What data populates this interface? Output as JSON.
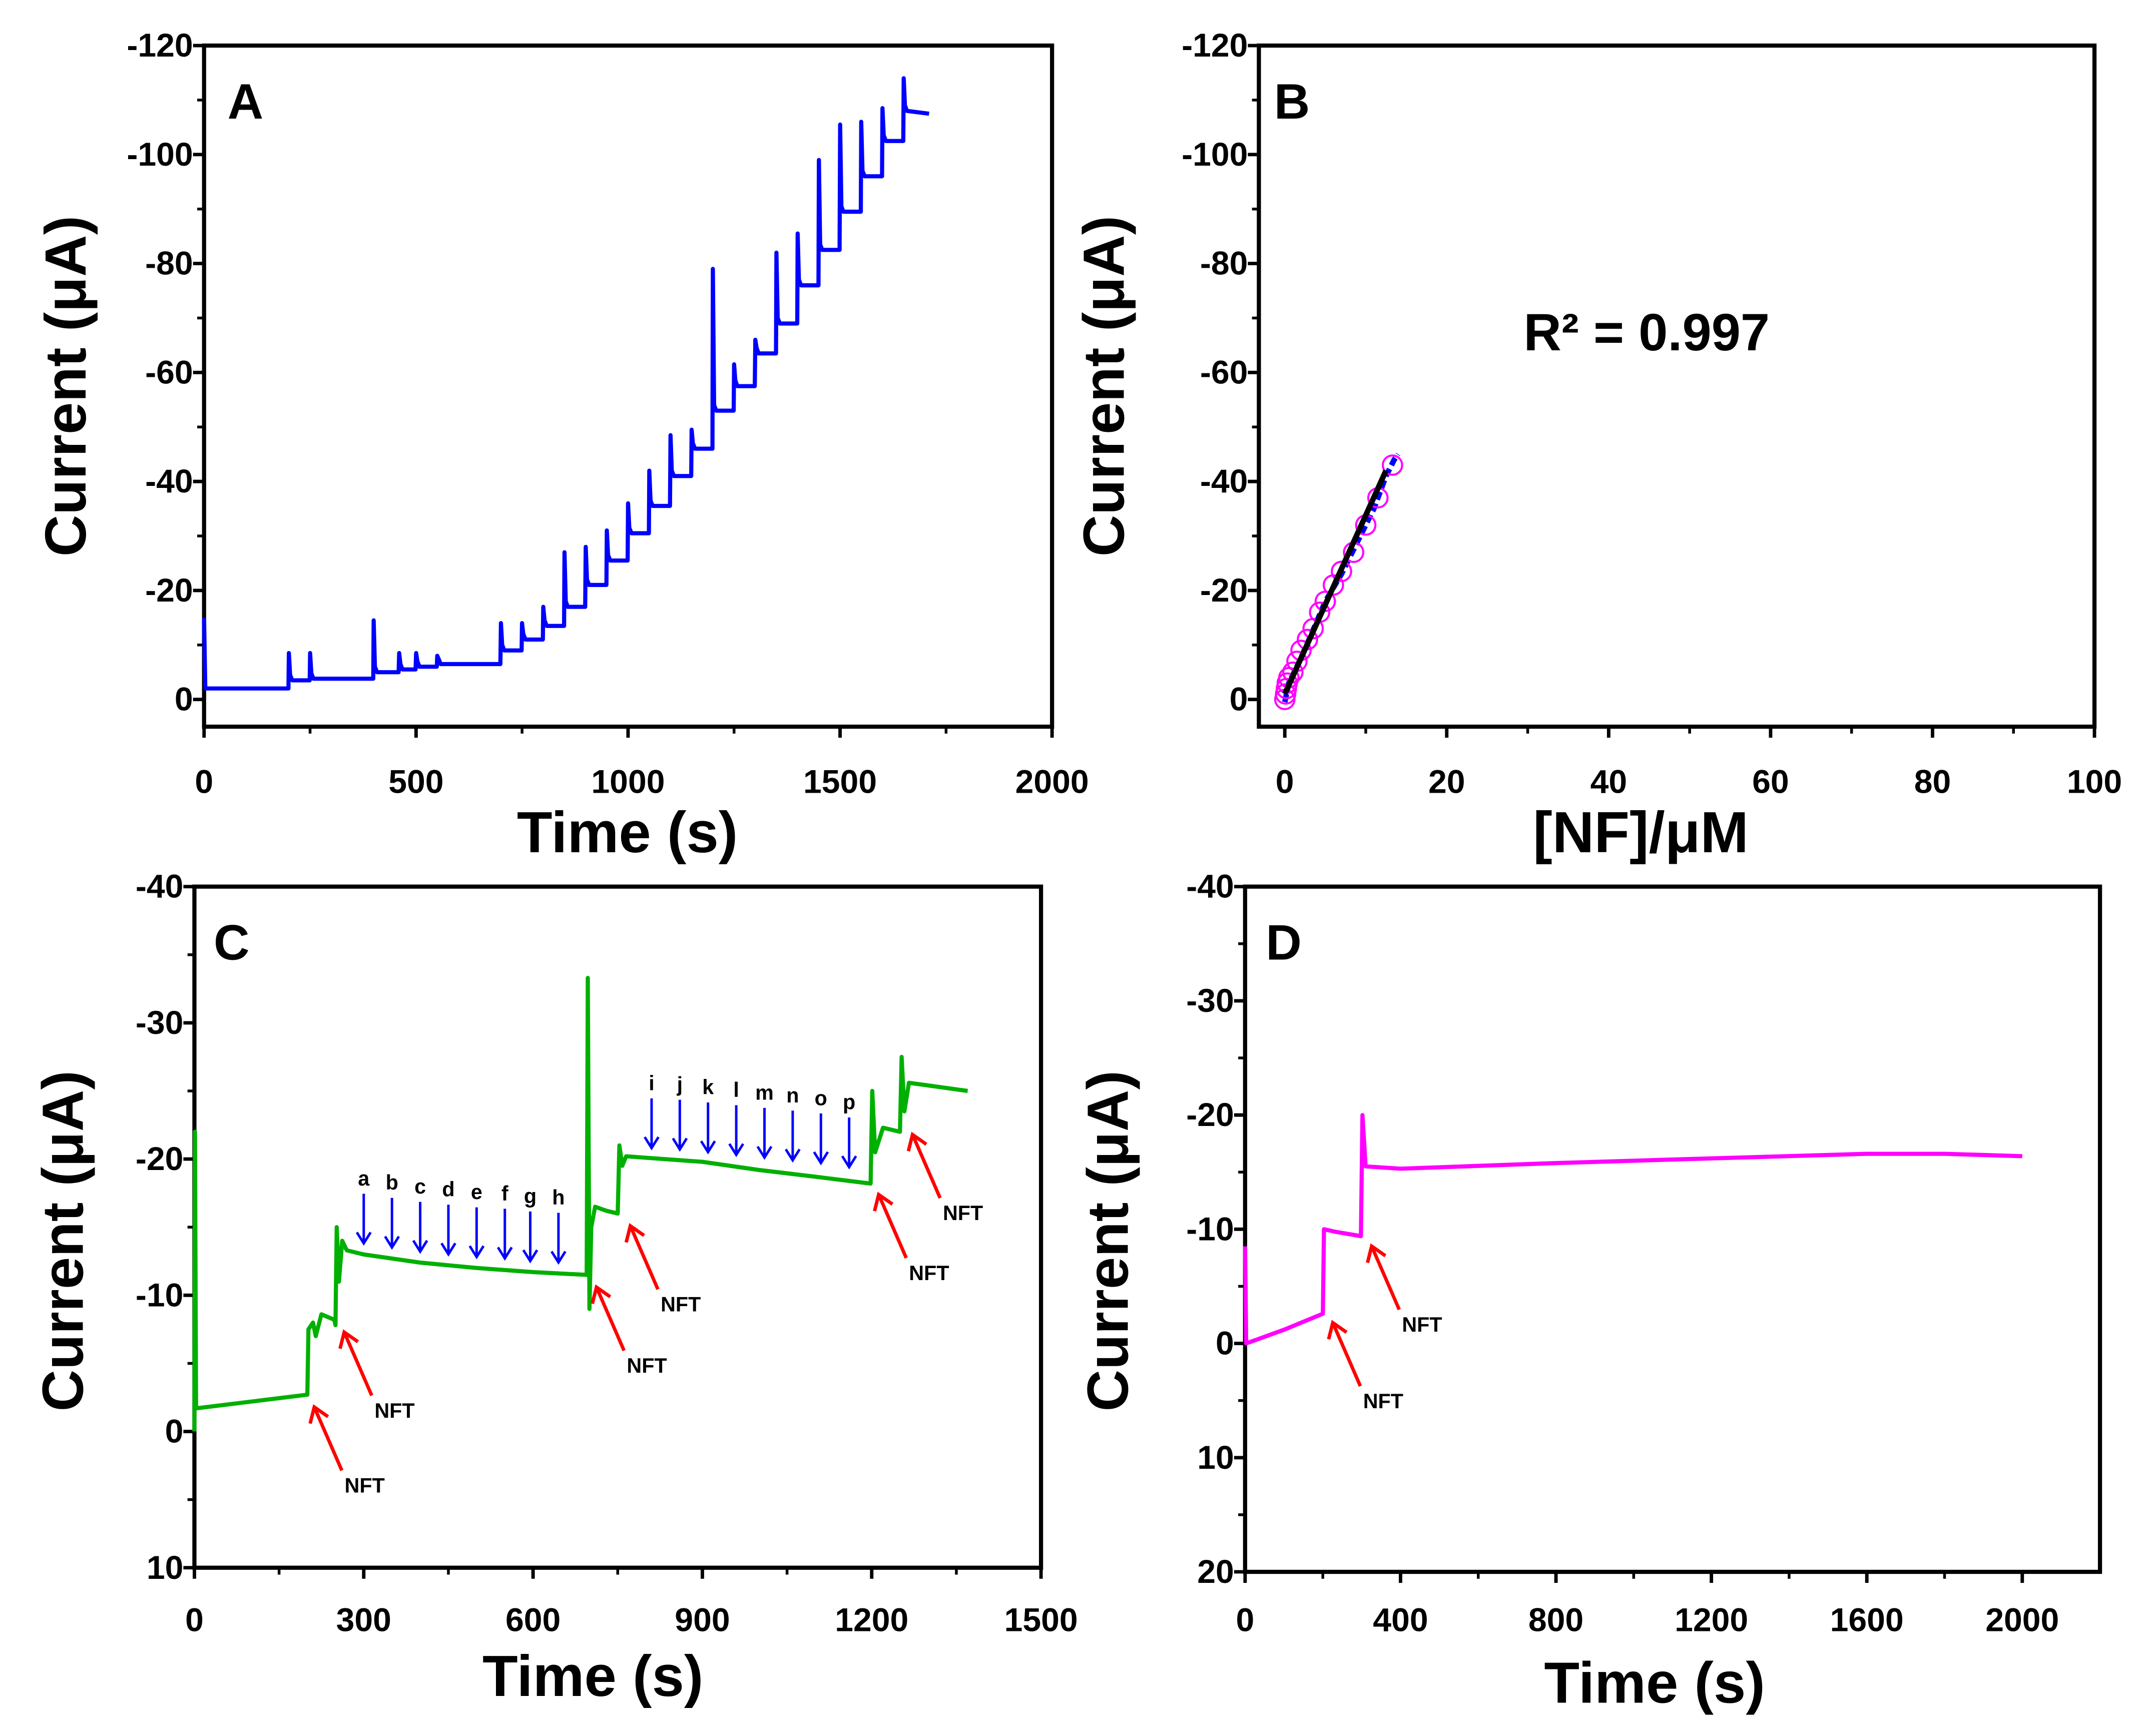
{
  "chart_data": [
    {
      "id": "A",
      "type": "line",
      "panel_label": "A",
      "xlabel": "Time (s)",
      "ylabel": "Current (μA)",
      "xlim": [
        0,
        2000
      ],
      "ylim": [
        -120,
        5
      ],
      "xticks": [
        0,
        500,
        1000,
        1500,
        2000
      ],
      "yticks": [
        -120,
        -100,
        -80,
        -60,
        -40,
        -20,
        0
      ],
      "color": "#0000ff",
      "series": {
        "start": {
          "t": 0,
          "spike": -15,
          "level": -2
        },
        "steps": [
          {
            "t": 200,
            "level": -3.5,
            "spike": -8.5
          },
          {
            "t": 250,
            "level": -3.8,
            "spike": -8.5
          },
          {
            "t": 400,
            "level": -5,
            "spike": -14.5
          },
          {
            "t": 460,
            "level": -5.5,
            "spike": -8.5
          },
          {
            "t": 500,
            "level": -6,
            "spike": -8.5
          },
          {
            "t": 550,
            "level": -6.5,
            "spike": -8
          },
          {
            "t": 700,
            "level": -9,
            "spike": -14
          },
          {
            "t": 750,
            "level": -11,
            "spike": -14
          },
          {
            "t": 800,
            "level": -13.5,
            "spike": -17
          },
          {
            "t": 850,
            "level": -17,
            "spike": -27
          },
          {
            "t": 900,
            "level": -21,
            "spike": -28
          },
          {
            "t": 950,
            "level": -25.5,
            "spike": -31
          },
          {
            "t": 1000,
            "level": -30.5,
            "spike": -36
          },
          {
            "t": 1050,
            "level": -35.5,
            "spike": -42
          },
          {
            "t": 1100,
            "level": -41,
            "spike": -48.5
          },
          {
            "t": 1150,
            "level": -46,
            "spike": -49.5
          },
          {
            "t": 1200,
            "level": -53,
            "spike": -79
          },
          {
            "t": 1250,
            "level": -57.5,
            "spike": -61.5
          },
          {
            "t": 1300,
            "level": -63.5,
            "spike": -66
          },
          {
            "t": 1350,
            "level": -69,
            "spike": -82
          },
          {
            "t": 1400,
            "level": -76,
            "spike": -85.5
          },
          {
            "t": 1450,
            "level": -82.5,
            "spike": -99
          },
          {
            "t": 1500,
            "level": -89.5,
            "spike": -105.5
          },
          {
            "t": 1550,
            "level": -96,
            "spike": -106
          },
          {
            "t": 1600,
            "level": -102.5,
            "spike": -108.5
          },
          {
            "t": 1650,
            "level": -108,
            "spike": -114
          }
        ],
        "end": {
          "t": 1710,
          "level": -107.5
        }
      }
    },
    {
      "id": "B",
      "type": "scatter",
      "panel_label": "B",
      "xlabel": "[NF]/μM",
      "ylabel": "Current (μA)",
      "xlim": [
        -3.2,
        100
      ],
      "ylim": [
        -120,
        5
      ],
      "xticks": [
        0,
        20,
        40,
        60,
        80,
        100
      ],
      "yticks": [
        -120,
        -100,
        -80,
        -60,
        -40,
        -20,
        0
      ],
      "annotation": "R² = 0.997",
      "points": [
        [
          0,
          0
        ],
        [
          0.1,
          -1
        ],
        [
          0.2,
          -2
        ],
        [
          0.3,
          -3
        ],
        [
          0.5,
          -4
        ],
        [
          1,
          -5
        ],
        [
          1.5,
          -7
        ],
        [
          2,
          -9
        ],
        [
          2.8,
          -11
        ],
        [
          3.5,
          -13
        ],
        [
          4.3,
          -16
        ],
        [
          5,
          -18
        ],
        [
          6,
          -21
        ],
        [
          7,
          -23.5
        ],
        [
          8.5,
          -27
        ],
        [
          10,
          -32
        ],
        [
          11.5,
          -37
        ],
        [
          13.3,
          -43
        ]
      ],
      "raw_line": [
        [
          0,
          0.5
        ],
        [
          0.5,
          -3
        ],
        [
          1.5,
          -6
        ],
        [
          3,
          -11
        ],
        [
          5,
          -18
        ],
        [
          7,
          -23
        ],
        [
          9,
          -29
        ],
        [
          11,
          -35
        ],
        [
          12.5,
          -41
        ],
        [
          13.5,
          -44
        ],
        [
          14,
          -45
        ]
      ],
      "fit": {
        "x": [
          0,
          12.5
        ],
        "y": [
          -1,
          -42
        ]
      },
      "colors": {
        "points": "#ff00ff",
        "raw": "#0000ff",
        "fit": "#000000"
      }
    },
    {
      "id": "C",
      "type": "line",
      "panel_label": "C",
      "xlabel": "Time (s)",
      "ylabel": "Current (μA)",
      "xlim": [
        0,
        1500
      ],
      "ylim": [
        -40,
        10
      ],
      "xticks": [
        0,
        300,
        600,
        900,
        1200,
        1500
      ],
      "yticks": [
        -40,
        -30,
        -20,
        -10,
        0,
        10
      ],
      "color": "#00b000",
      "trace": [
        [
          0,
          0
        ],
        [
          1,
          -22
        ],
        [
          3,
          -1.7
        ],
        [
          200,
          -2.7
        ],
        [
          202,
          -7.5
        ],
        [
          210,
          -8
        ],
        [
          215,
          -7
        ],
        [
          225,
          -8.6
        ],
        [
          248,
          -8.2
        ],
        [
          250,
          -7.8
        ],
        [
          252,
          -15
        ],
        [
          256,
          -11
        ],
        [
          262,
          -14
        ],
        [
          270,
          -13.3
        ],
        [
          300,
          -13
        ],
        [
          400,
          -12.4
        ],
        [
          500,
          -12
        ],
        [
          600,
          -11.7
        ],
        [
          695,
          -11.5
        ],
        [
          697,
          -33.3
        ],
        [
          700,
          -9
        ],
        [
          703,
          -15
        ],
        [
          710,
          -16.5
        ],
        [
          730,
          -16.2
        ],
        [
          750,
          -16
        ],
        [
          753,
          -21
        ],
        [
          758,
          -19.5
        ],
        [
          765,
          -20.2
        ],
        [
          900,
          -19.8
        ],
        [
          1000,
          -19.2
        ],
        [
          1100,
          -18.7
        ],
        [
          1198,
          -18.2
        ],
        [
          1201,
          -25
        ],
        [
          1206,
          -20.5
        ],
        [
          1220,
          -22.3
        ],
        [
          1250,
          -22
        ],
        [
          1253,
          -27.5
        ],
        [
          1258,
          -23.5
        ],
        [
          1266,
          -25.6
        ],
        [
          1300,
          -25.4
        ],
        [
          1370,
          -25
        ]
      ],
      "blue_arrows": [
        {
          "label": "a",
          "t": 300,
          "i": -13
        },
        {
          "label": "b",
          "t": 350,
          "i": -12.7
        },
        {
          "label": "c",
          "t": 400,
          "i": -12.4
        },
        {
          "label": "d",
          "t": 450,
          "i": -12.2
        },
        {
          "label": "e",
          "t": 500,
          "i": -12
        },
        {
          "label": "f",
          "t": 550,
          "i": -11.9
        },
        {
          "label": "g",
          "t": 595,
          "i": -11.7
        },
        {
          "label": "h",
          "t": 645,
          "i": -11.6
        },
        {
          "label": "i",
          "t": 810,
          "i": -20
        },
        {
          "label": "j",
          "t": 860,
          "i": -19.9
        },
        {
          "label": "k",
          "t": 910,
          "i": -19.7
        },
        {
          "label": "l",
          "t": 960,
          "i": -19.5
        },
        {
          "label": "m",
          "t": 1010,
          "i": -19.3
        },
        {
          "label": "n",
          "t": 1060,
          "i": -19.1
        },
        {
          "label": "o",
          "t": 1110,
          "i": -18.9
        },
        {
          "label": "p",
          "t": 1160,
          "i": -18.6
        }
      ],
      "red_arrows": [
        {
          "label": "NFT",
          "t": 205,
          "i": -2.2
        },
        {
          "label": "NFT",
          "t": 258,
          "i": -7.7
        },
        {
          "label": "NFT",
          "t": 705,
          "i": -11
        },
        {
          "label": "NFT",
          "t": 765,
          "i": -15.5
        },
        {
          "label": "NFT",
          "t": 1205,
          "i": -17.8
        },
        {
          "label": "NFT",
          "t": 1265,
          "i": -22.2
        }
      ]
    },
    {
      "id": "D",
      "type": "line",
      "panel_label": "D",
      "xlabel": "Time (s)",
      "ylabel": "Current (μA)",
      "xlim": [
        0,
        2200
      ],
      "ylim": [
        -40,
        20
      ],
      "xticks": [
        0,
        400,
        800,
        1200,
        1600,
        2000
      ],
      "yticks": [
        -40,
        -30,
        -20,
        -10,
        0,
        10,
        20
      ],
      "color": "#ff00ff",
      "trace": [
        [
          0,
          -8.5
        ],
        [
          3,
          0
        ],
        [
          100,
          -1.2
        ],
        [
          200,
          -2.6
        ],
        [
          203,
          -10
        ],
        [
          230,
          -9.8
        ],
        [
          298,
          -9.4
        ],
        [
          302,
          -20
        ],
        [
          310,
          -15.5
        ],
        [
          400,
          -15.3
        ],
        [
          800,
          -15.8
        ],
        [
          1200,
          -16.2
        ],
        [
          1600,
          -16.6
        ],
        [
          1800,
          -16.6
        ],
        [
          2000,
          -16.4
        ]
      ],
      "red_arrows": [
        {
          "label": "NFT",
          "t": 215,
          "i": -2.3
        },
        {
          "label": "NFT",
          "t": 315,
          "i": -9
        }
      ]
    }
  ]
}
